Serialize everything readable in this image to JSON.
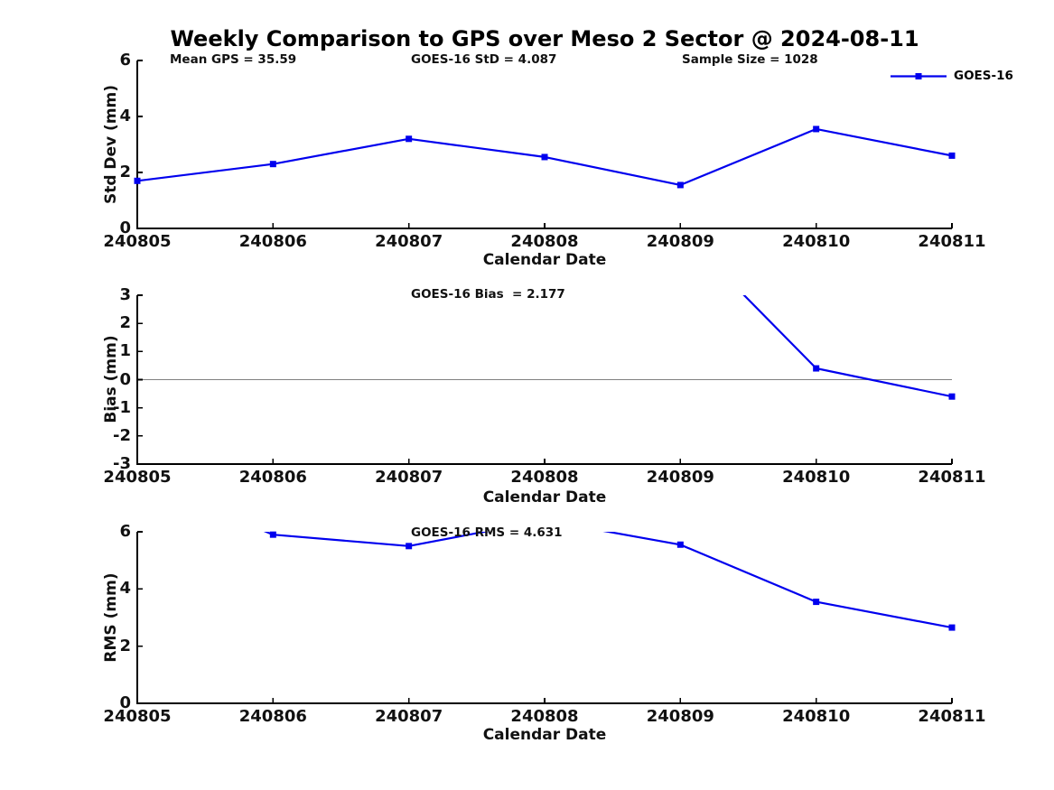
{
  "chart_data": {
    "type": "line",
    "figure_title": "Weekly Comparison to GPS over Meso 2 Sector @ 2024-08-11",
    "xlabel": "Calendar Date",
    "x": [
      240805,
      240806,
      240807,
      240808,
      240809,
      240810,
      240811
    ],
    "x_tick_labels": [
      "240805",
      "240806",
      "240807",
      "240808",
      "240809",
      "240810",
      "240811"
    ],
    "xlim": [
      240805,
      240811
    ],
    "colors": {
      "series": "#0000EE",
      "axis": "#000000",
      "zero_line": "#808080",
      "text": "#111111",
      "background": "#ffffff"
    },
    "marker": "square",
    "grid": false,
    "legend_position": "top-right-of-first-panel",
    "panels": [
      {
        "ylabel": "Std Dev (mm)",
        "ylim": [
          0,
          6
        ],
        "yticks": [
          0,
          2,
          4,
          6
        ],
        "ytick_labels": [
          "0",
          "2",
          "4",
          "6"
        ],
        "zero_line": false,
        "annotations": [
          {
            "text": "Mean GPS = 35.59"
          },
          {
            "text": "GOES-16 StD = 4.087"
          },
          {
            "text": "Sample Size = 1028"
          }
        ],
        "legend": [
          {
            "name": "GOES-16"
          }
        ],
        "series": [
          {
            "name": "GOES-16",
            "y": [
              1.7,
              2.3,
              3.2,
              2.55,
              1.55,
              3.55,
              2.6
            ]
          }
        ]
      },
      {
        "ylabel": "Bias (mm)",
        "ylim": [
          -3,
          3
        ],
        "yticks": [
          -3,
          -2,
          -1,
          0,
          1,
          2,
          3
        ],
        "ytick_labels": [
          "-3",
          "-2",
          "-1",
          "0",
          "1",
          "2",
          "3"
        ],
        "zero_line": true,
        "annotations": [
          {
            "text": "GOES-16 Bias  = 2.177"
          }
        ],
        "series": [
          {
            "name": "GOES-16",
            "y": [
              null,
              null,
              null,
              null,
              5.3,
              0.4,
              -0.6
            ]
          }
        ],
        "note": "No line visible for 240805-240808; value at 240809 is above ylim (est. 5.3), line enters clipped at top near x=240809.5; visible markers: 240810=0.4, 240811=-0.6"
      },
      {
        "ylabel": "RMS (mm)",
        "ylim": [
          0,
          6
        ],
        "yticks": [
          0,
          2,
          4,
          6
        ],
        "ytick_labels": [
          "0",
          "2",
          "4",
          "6"
        ],
        "zero_line": false,
        "annotations": [
          {
            "text": "GOES-16 RMS = 4.631"
          }
        ],
        "series": [
          {
            "name": "GOES-16",
            "y": [
              7.9,
              5.9,
              5.5,
              6.4,
              5.55,
              3.55,
              2.65
            ]
          }
        ],
        "note": "Values at 240805 (est. 7.9) and 240808 (est. 6.4) exceed ylim top; line is clipped at y=6 producing a gap; visible markers: 240806=5.9, 240807=5.5, 240809=5.55, 240810=3.55, 240811=2.65"
      }
    ]
  }
}
